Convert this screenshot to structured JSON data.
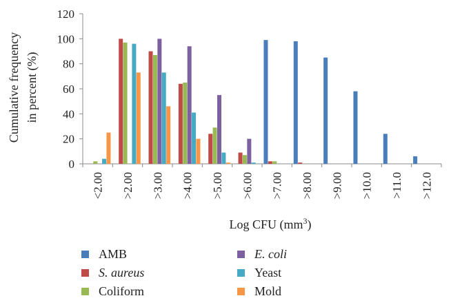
{
  "chart_data": {
    "type": "bar",
    "title": "",
    "xlabel": "Log CFU (mm3)",
    "xlabel_parts": {
      "base": "Log CFU (mm",
      "sup": "3",
      "tail": ")"
    },
    "ylabel_lines": [
      "Cumulative frequency",
      "in percent (%)"
    ],
    "ylim": [
      0,
      120
    ],
    "yticks": [
      0,
      20,
      40,
      60,
      80,
      100,
      120
    ],
    "grid": false,
    "legend_position": "bottom",
    "categories": [
      "<2.00",
      ">2.00",
      ">3.00",
      ">4.00",
      ">5.00",
      ">6.00",
      ">7.00",
      ">8.00",
      ">9.00",
      ">10.0",
      ">11.0",
      ">12.0"
    ],
    "series": [
      {
        "name": "AMB",
        "italic": false,
        "color": "#4a7ebb",
        "values": [
          0,
          0,
          0,
          0,
          0,
          0,
          99,
          98,
          85,
          58,
          24,
          6
        ]
      },
      {
        "name": "S. aureus",
        "italic": true,
        "color": "#be4b48",
        "values": [
          0,
          100,
          90,
          64,
          24,
          9,
          2,
          1,
          0,
          0,
          0,
          0
        ]
      },
      {
        "name": "Coliform",
        "italic": false,
        "color": "#98b954",
        "values": [
          2,
          97,
          87,
          65,
          29,
          7,
          2,
          0,
          0,
          0,
          0,
          0
        ]
      },
      {
        "name": "E. coli",
        "italic": true,
        "color": "#7d60a0",
        "values": [
          0,
          0,
          100,
          94,
          55,
          20,
          0,
          0,
          0,
          0,
          0,
          0
        ]
      },
      {
        "name": "Yeast",
        "italic": false,
        "color": "#46aac5",
        "values": [
          4,
          96,
          73,
          41,
          9,
          1,
          0,
          0,
          0,
          0,
          0,
          0
        ]
      },
      {
        "name": "Mold",
        "italic": false,
        "color": "#f79646",
        "values": [
          25,
          73,
          46,
          20,
          1,
          0,
          0,
          0,
          0,
          0,
          0,
          0
        ]
      }
    ]
  }
}
